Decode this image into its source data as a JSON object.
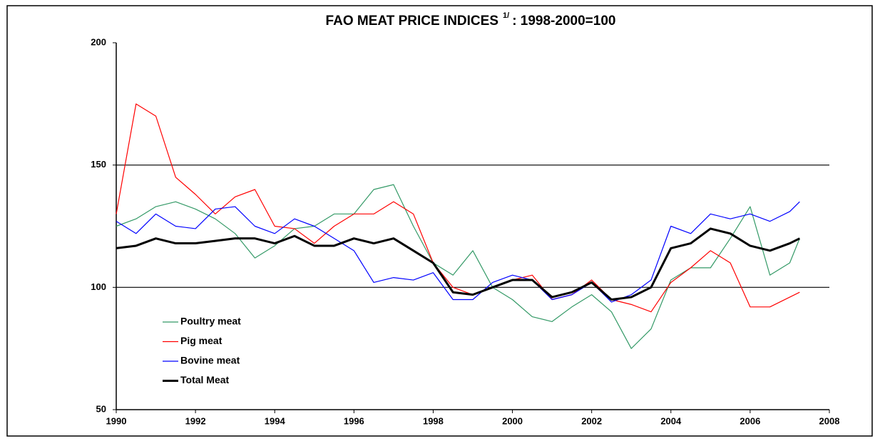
{
  "chart_data": {
    "type": "line",
    "title": "FAO  MEAT PRICE INDICES",
    "title_superscript": "1/",
    "title_suffix": ": 1998-2000=100",
    "x": [
      1990,
      1990.5,
      1991,
      1991.5,
      1992,
      1992.5,
      1993,
      1993.5,
      1994,
      1994.5,
      1995,
      1995.5,
      1996,
      1996.5,
      1997,
      1997.5,
      1998,
      1998.5,
      1999,
      1999.5,
      2000,
      2000.5,
      2001,
      2001.5,
      2002,
      2002.5,
      2003,
      2003.5,
      2004,
      2004.5,
      2005,
      2005.5,
      2006,
      2006.5,
      2007,
      2007.25
    ],
    "series": [
      {
        "name": "Poultry meat",
        "color": "#339966",
        "width": 1.2,
        "values": [
          125,
          128,
          133,
          135,
          132,
          128,
          122,
          112,
          117,
          124,
          125,
          130,
          130,
          140,
          142,
          125,
          110,
          105,
          115,
          100,
          95,
          88,
          86,
          92,
          97,
          90,
          75,
          83,
          103,
          108,
          108,
          120,
          133,
          105,
          110,
          120
        ]
      },
      {
        "name": "Pig meat",
        "color": "#ff0000",
        "width": 1.2,
        "values": [
          130,
          175,
          170,
          145,
          138,
          130,
          137,
          140,
          125,
          124,
          118,
          125,
          130,
          130,
          135,
          130,
          110,
          100,
          97,
          100,
          103,
          105,
          95,
          97,
          103,
          95,
          93,
          90,
          102,
          108,
          115,
          110,
          92,
          92,
          96,
          98
        ]
      },
      {
        "name": "Bovine meat",
        "color": "#0000ff",
        "width": 1.2,
        "values": [
          127,
          122,
          130,
          125,
          124,
          132,
          133,
          125,
          122,
          128,
          125,
          120,
          115,
          102,
          104,
          103,
          106,
          95,
          95,
          102,
          105,
          103,
          95,
          97,
          102,
          94,
          97,
          103,
          125,
          122,
          130,
          128,
          130,
          127,
          131,
          135
        ]
      },
      {
        "name": "Total Meat",
        "color": "#000000",
        "width": 3,
        "values": [
          116,
          117,
          120,
          118,
          118,
          119,
          120,
          120,
          118,
          121,
          117,
          117,
          120,
          118,
          120,
          115,
          110,
          98,
          97,
          100,
          103,
          103,
          96,
          98,
          102,
          95,
          96,
          100,
          116,
          118,
          124,
          122,
          117,
          115,
          118,
          120
        ]
      }
    ],
    "xlim": [
      1990,
      2008
    ],
    "xticks": [
      1990,
      1992,
      1994,
      1996,
      1998,
      2000,
      2002,
      2004,
      2006,
      2008
    ],
    "ylim": [
      50,
      200
    ],
    "yticks": [
      50,
      100,
      150,
      200
    ],
    "grid": true,
    "legend": "lower left"
  }
}
